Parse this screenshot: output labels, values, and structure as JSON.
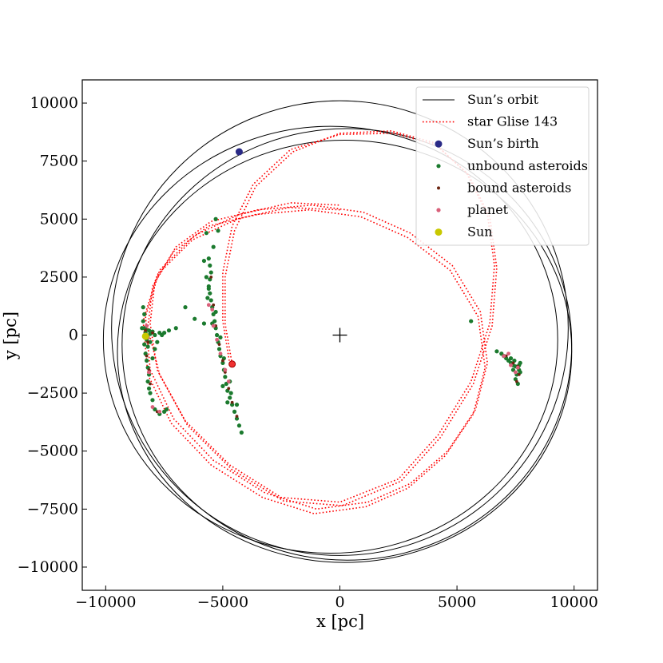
{
  "chart_data": {
    "type": "scatter",
    "xlabel": "x [pc]",
    "ylabel": "y [pc]",
    "xlim": [
      -11000,
      11000
    ],
    "ylim": [
      -11000,
      11000
    ],
    "xticks": [
      -10000,
      -5000,
      0,
      5000,
      10000
    ],
    "yticks": [
      -10000,
      -7500,
      -5000,
      -2500,
      0,
      2500,
      5000,
      7500,
      10000
    ],
    "xtick_labels": [
      "−10000",
      "−5000",
      "0",
      "5000",
      "10000"
    ],
    "ytick_labels": [
      "−10000",
      "−7500",
      "−5000",
      "−2500",
      "0",
      "2500",
      "5000",
      "7500",
      "10000"
    ],
    "grid": false,
    "legend_position": "top-right",
    "center_marker": {
      "x": 0,
      "y": 0,
      "symbol": "+"
    },
    "series": [
      {
        "name": "Sun’s orbit",
        "kind": "line",
        "style": "solid",
        "color": "#000000",
        "loops": [
          {
            "cx": 0,
            "cy": 300,
            "rx": 9750,
            "ry": 9800
          },
          {
            "cx": 300,
            "cy": -400,
            "rx": 9600,
            "ry": 9300
          },
          {
            "cx": -400,
            "cy": -200,
            "rx": 9700,
            "ry": 9200
          },
          {
            "cx": 200,
            "cy": -700,
            "rx": 9700,
            "ry": 9100
          }
        ]
      },
      {
        "name": "star Glise 143",
        "kind": "line",
        "style": "dotted",
        "color": "#ff0000",
        "paths": [
          [
            [
              -4600,
              -1250
            ],
            [
              -4900,
              500
            ],
            [
              -4900,
              2500
            ],
            [
              -4500,
              4500
            ],
            [
              -3600,
              6400
            ],
            [
              -2000,
              7900
            ],
            [
              0,
              8700
            ],
            [
              2200,
              8800
            ],
            [
              4000,
              8300
            ],
            [
              5400,
              7000
            ],
            [
              6300,
              5200
            ],
            [
              6600,
              3000
            ],
            [
              6400,
              500
            ],
            [
              5600,
              -2000
            ],
            [
              4200,
              -4300
            ],
            [
              2500,
              -6200
            ],
            [
              0,
              -7200
            ],
            [
              -2500,
              -7000
            ],
            [
              -4700,
              -5600
            ],
            [
              -6600,
              -3700
            ],
            [
              -7800,
              -1500
            ],
            [
              -8100,
              500
            ],
            [
              -7900,
              2300
            ],
            [
              -7000,
              3800
            ],
            [
              -5500,
              4900
            ],
            [
              -3500,
              5400
            ],
            [
              -1200,
              5600
            ],
            [
              1000,
              5300
            ],
            [
              3000,
              4400
            ],
            [
              4800,
              3000
            ],
            [
              6000,
              1000
            ],
            [
              6300,
              -1200
            ],
            [
              5800,
              -3200
            ],
            [
              4600,
              -5000
            ],
            [
              3000,
              -6400
            ],
            [
              1200,
              -7200
            ],
            [
              -1000,
              -7500
            ],
            [
              -3200,
              -6800
            ],
            [
              -5400,
              -5400
            ],
            [
              -7100,
              -3600
            ],
            [
              -8100,
              -1500
            ],
            [
              -8300,
              800
            ],
            [
              -7700,
              2800
            ],
            [
              -6200,
              4300
            ],
            [
              -4300,
              5200
            ],
            [
              -2100,
              5700
            ],
            [
              0,
              5600
            ]
          ],
          [
            [
              -4700,
              -1250
            ],
            [
              -5000,
              600
            ],
            [
              -5000,
              2700
            ],
            [
              -4600,
              4700
            ],
            [
              -3700,
              6500
            ],
            [
              -2100,
              8000
            ],
            [
              0,
              8650
            ],
            [
              2300,
              8700
            ],
            [
              4100,
              8200
            ],
            [
              5500,
              6900
            ],
            [
              6400,
              5100
            ],
            [
              6700,
              2900
            ],
            [
              6500,
              400
            ],
            [
              5700,
              -2100
            ],
            [
              4300,
              -4400
            ],
            [
              2600,
              -6300
            ],
            [
              100,
              -7350
            ],
            [
              -2400,
              -7150
            ],
            [
              -4600,
              -5800
            ],
            [
              -6500,
              -3900
            ],
            [
              -7700,
              -1700
            ],
            [
              -8200,
              300
            ],
            [
              -8000,
              2100
            ],
            [
              -7100,
              3600
            ],
            [
              -5600,
              4700
            ],
            [
              -3600,
              5200
            ],
            [
              -1300,
              5400
            ],
            [
              900,
              5100
            ],
            [
              2900,
              4200
            ],
            [
              4700,
              2800
            ],
            [
              5900,
              800
            ],
            [
              6200,
              -1400
            ],
            [
              5700,
              -3400
            ],
            [
              4500,
              -5200
            ],
            [
              2900,
              -6600
            ],
            [
              1100,
              -7400
            ],
            [
              -1100,
              -7700
            ],
            [
              -3300,
              -7000
            ],
            [
              -5500,
              -5600
            ],
            [
              -7200,
              -3800
            ],
            [
              -8200,
              -1700
            ],
            [
              -8400,
              600
            ],
            [
              -7800,
              2600
            ],
            [
              -6300,
              4100
            ],
            [
              -4400,
              5000
            ],
            [
              -2200,
              5500
            ],
            [
              0,
              5400
            ]
          ]
        ]
      },
      {
        "name": "Sun’s birth",
        "kind": "marker",
        "color": "#2a2a86",
        "points": [
          [
            -4300,
            7900
          ]
        ]
      },
      {
        "name": "unbound asteroids",
        "kind": "scatter",
        "color": "#1b7a2e",
        "points": [
          [
            -8400,
            1200
          ],
          [
            -8350,
            900
          ],
          [
            -8400,
            600
          ],
          [
            -8350,
            300
          ],
          [
            -8300,
            100
          ],
          [
            -8200,
            -100
          ],
          [
            -8100,
            -300
          ],
          [
            -8200,
            -500
          ],
          [
            -8300,
            -800
          ],
          [
            -8250,
            -1100
          ],
          [
            -8200,
            -1400
          ],
          [
            -8150,
            -1700
          ],
          [
            -8200,
            -2000
          ],
          [
            -8150,
            -2300
          ],
          [
            -8100,
            -2500
          ],
          [
            -8000,
            -2800
          ],
          [
            -7900,
            -3200
          ],
          [
            -7700,
            -3400
          ],
          [
            -7500,
            -3300
          ],
          [
            -7400,
            -3200
          ],
          [
            -7900,
            0
          ],
          [
            -7700,
            100
          ],
          [
            -7500,
            100
          ],
          [
            -7300,
            200
          ],
          [
            -7000,
            300
          ],
          [
            -6600,
            1200
          ],
          [
            -6200,
            700
          ],
          [
            -5800,
            500
          ],
          [
            -8450,
            300
          ],
          [
            -8300,
            250
          ],
          [
            -8150,
            200
          ],
          [
            -8000,
            150
          ],
          [
            -8100,
            50
          ],
          [
            -8250,
            -200
          ],
          [
            -8350,
            -400
          ],
          [
            -8000,
            -1000
          ],
          [
            -7900,
            -600
          ],
          [
            -7800,
            -300
          ],
          [
            -7600,
            0
          ],
          [
            -5600,
            3300
          ],
          [
            -5550,
            3000
          ],
          [
            -5500,
            2700
          ],
          [
            -5550,
            2400
          ],
          [
            -5600,
            2100
          ],
          [
            -5550,
            1800
          ],
          [
            -5500,
            1500
          ],
          [
            -5450,
            1200
          ],
          [
            -5400,
            900
          ],
          [
            -5350,
            600
          ],
          [
            -5300,
            300
          ],
          [
            -5250,
            0
          ],
          [
            -5200,
            -300
          ],
          [
            -5150,
            -600
          ],
          [
            -5100,
            -900
          ],
          [
            -5000,
            -1200
          ],
          [
            -4950,
            -1500
          ],
          [
            -4900,
            -1800
          ],
          [
            -4850,
            -2100
          ],
          [
            -4800,
            -2400
          ],
          [
            -4700,
            -2700
          ],
          [
            -4600,
            -3000
          ],
          [
            -4500,
            -3300
          ],
          [
            -4400,
            -3600
          ],
          [
            -4300,
            -3900
          ],
          [
            -4200,
            -4200
          ],
          [
            -5300,
            5000
          ],
          [
            -5200,
            4500
          ],
          [
            -5400,
            3800
          ],
          [
            -5700,
            2500
          ],
          [
            -5650,
            1600
          ],
          [
            -5450,
            500
          ],
          [
            -5100,
            -100
          ],
          [
            -4950,
            -1000
          ],
          [
            -4700,
            -2000
          ],
          [
            -4650,
            -2500
          ],
          [
            -4400,
            -3000
          ],
          [
            -5800,
            3200
          ],
          [
            -5600,
            2000
          ],
          [
            -5300,
            1000
          ],
          [
            -5700,
            4400
          ],
          [
            -4800,
            -2900
          ],
          [
            -5000,
            -2200
          ],
          [
            6900,
            -800
          ],
          [
            7000,
            -900
          ],
          [
            7100,
            -1000
          ],
          [
            7200,
            -1100
          ],
          [
            7300,
            -1200
          ],
          [
            7400,
            -1300
          ],
          [
            7500,
            -1350
          ],
          [
            7600,
            -1400
          ],
          [
            7650,
            -1500
          ],
          [
            7700,
            -1600
          ],
          [
            7550,
            -1700
          ],
          [
            7500,
            -1900
          ],
          [
            7600,
            -2100
          ],
          [
            7450,
            -1100
          ],
          [
            7300,
            -1000
          ],
          [
            6700,
            -700
          ],
          [
            5600,
            600
          ],
          [
            7650,
            -1300
          ],
          [
            7700,
            -1200
          ],
          [
            7400,
            -1500
          ]
        ]
      },
      {
        "name": "bound asteroids",
        "kind": "scatter",
        "color": "#6b2410",
        "points": [
          [
            -8300,
            200
          ],
          [
            -8200,
            -300
          ],
          [
            -8250,
            -900
          ],
          [
            -8150,
            -1500
          ],
          [
            -8100,
            -2100
          ],
          [
            -7800,
            -3300
          ],
          [
            -8000,
            100
          ],
          [
            -5500,
            2500
          ],
          [
            -5400,
            1300
          ],
          [
            -5300,
            400
          ],
          [
            -5150,
            -400
          ],
          [
            -5000,
            -1100
          ],
          [
            -4900,
            -1600
          ],
          [
            -4750,
            -2300
          ],
          [
            -4600,
            -2900
          ],
          [
            -4400,
            -3500
          ],
          [
            7100,
            -900
          ],
          [
            7400,
            -1200
          ],
          [
            7600,
            -1350
          ],
          [
            7650,
            -1700
          ],
          [
            7550,
            -2000
          ]
        ]
      },
      {
        "name": "planet",
        "kind": "scatter",
        "color": "#d9607a",
        "points": [
          [
            -8250,
            400
          ],
          [
            -8200,
            -100
          ],
          [
            -8150,
            -1600
          ],
          [
            -8000,
            -3100
          ],
          [
            -7700,
            -3300
          ],
          [
            -5600,
            1300
          ],
          [
            -5450,
            1100
          ],
          [
            -5400,
            400
          ],
          [
            -5250,
            -200
          ],
          [
            -5100,
            -800
          ],
          [
            -4900,
            -1500
          ],
          [
            -4750,
            -2000
          ],
          [
            7000,
            -900
          ],
          [
            7300,
            -1300
          ],
          [
            7500,
            -1600
          ],
          [
            7600,
            -1400
          ],
          [
            7200,
            -800
          ]
        ]
      },
      {
        "name": "Sun",
        "kind": "marker",
        "color": "#c8c800",
        "points": [
          [
            -8300,
            -50
          ]
        ]
      }
    ],
    "star_current_position": {
      "x": -4600,
      "y": -1250,
      "color": "#ff0000"
    }
  }
}
